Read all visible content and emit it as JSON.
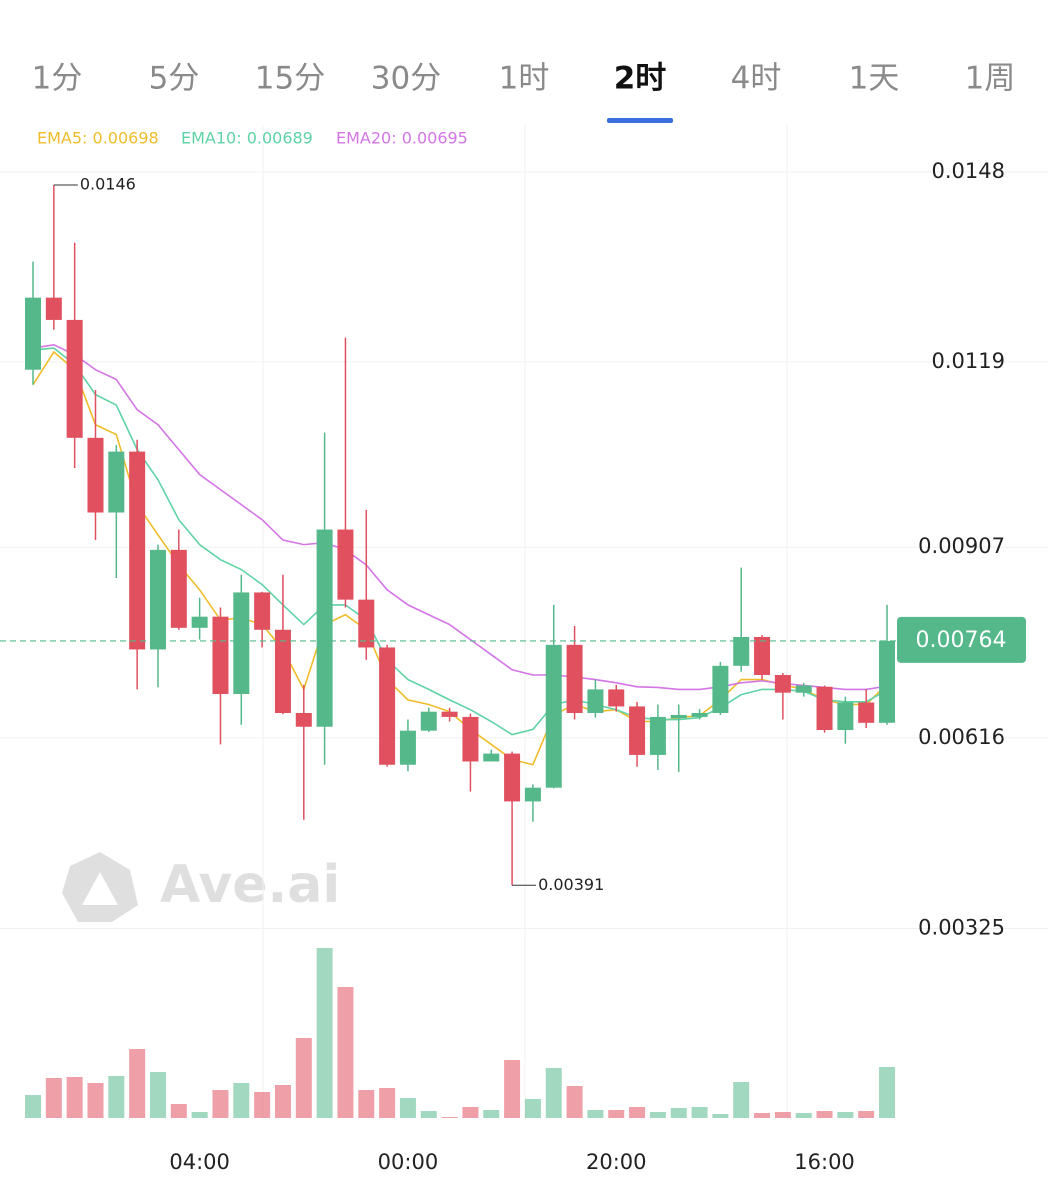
{
  "tabs": [
    "1分",
    "5分",
    "15分",
    "30分",
    "1时",
    "2时",
    "4时",
    "1天",
    "1周"
  ],
  "active_tab": 5,
  "watermark": "Ave.ai",
  "chart_data": {
    "type": "candlestick",
    "categories": [
      null,
      null,
      null,
      null,
      null,
      null,
      null,
      null,
      "04:00",
      null,
      null,
      null,
      null,
      null,
      null,
      null,
      null,
      null,
      "00:00",
      null,
      null,
      null,
      null,
      null,
      null,
      null,
      null,
      null,
      "20:00",
      null,
      null,
      null,
      null,
      null,
      null,
      null,
      null,
      null,
      "16:00",
      null,
      null,
      null
    ],
    "open": [
      0.01178,
      0.01288,
      0.01254,
      0.01074,
      0.0096,
      0.01053,
      0.00751,
      0.00903,
      0.00784,
      0.00801,
      0.00683,
      0.00838,
      0.00781,
      0.00654,
      0.00633,
      0.00934,
      0.00827,
      0.00754,
      0.00575,
      0.00627,
      0.00656,
      0.00648,
      0.0058,
      0.00592,
      0.00519,
      0.0054,
      0.00758,
      0.00654,
      0.0069,
      0.00664,
      0.0059,
      0.00646,
      0.00648,
      0.00654,
      0.00726,
      0.0077,
      0.00712,
      0.00685,
      0.00694,
      0.00628,
      0.0067,
      0.00639
    ],
    "high": [
      0.01343,
      0.0146,
      0.01372,
      0.01147,
      0.01063,
      0.01071,
      0.00911,
      0.00934,
      0.0083,
      0.00815,
      0.00865,
      0.00839,
      0.00865,
      0.00697,
      0.01082,
      0.01227,
      0.00964,
      0.00758,
      0.00644,
      0.00662,
      0.00662,
      0.00653,
      0.00598,
      0.00595,
      0.00545,
      0.00819,
      0.00787,
      0.00705,
      0.00697,
      0.00671,
      0.00667,
      0.00667,
      0.0066,
      0.00732,
      0.00876,
      0.00773,
      0.00715,
      0.007,
      0.00696,
      0.00679,
      0.0069,
      0.00819
    ],
    "low": [
      0.01155,
      0.01239,
      0.01028,
      0.00918,
      0.0086,
      0.0069,
      0.00693,
      0.00781,
      0.00766,
      0.00606,
      0.00636,
      0.00754,
      0.00652,
      0.00491,
      0.00575,
      0.00815,
      0.00735,
      0.00572,
      0.00565,
      0.00625,
      0.00641,
      0.00534,
      0.0058,
      0.00391,
      0.00488,
      0.00539,
      0.00644,
      0.00647,
      0.00656,
      0.00572,
      0.00567,
      0.00564,
      0.00644,
      0.00651,
      0.00717,
      0.00705,
      0.00644,
      0.00679,
      0.00624,
      0.00607,
      0.00631,
      0.00636
    ],
    "close": [
      0.01288,
      0.01254,
      0.01074,
      0.0096,
      0.01053,
      0.00751,
      0.00903,
      0.00784,
      0.00801,
      0.00683,
      0.00838,
      0.00781,
      0.00654,
      0.00633,
      0.00934,
      0.00827,
      0.00754,
      0.00575,
      0.00627,
      0.00656,
      0.00648,
      0.0058,
      0.00592,
      0.00519,
      0.0054,
      0.00758,
      0.00654,
      0.0069,
      0.00664,
      0.0059,
      0.00648,
      0.00651,
      0.00654,
      0.00726,
      0.0077,
      0.00712,
      0.00685,
      0.00696,
      0.00628,
      0.0067,
      0.00639,
      0.00764
    ],
    "volume": [
      23,
      40,
      41,
      35,
      42,
      69,
      46,
      14,
      6,
      28,
      35,
      26,
      33,
      80,
      170,
      131,
      28,
      30,
      20,
      7,
      1,
      11,
      8,
      58,
      19,
      50,
      32,
      8,
      8,
      11,
      6,
      10,
      11,
      4,
      36,
      5,
      6,
      5,
      7,
      6,
      7,
      51
    ],
    "series": [
      {
        "name": "EMA5: 0.00698",
        "color": "#f0bd2a",
        "values": [
          0.01155,
          0.01205,
          0.01178,
          0.01094,
          0.01079,
          0.00972,
          0.00926,
          0.0088,
          0.00842,
          0.00796,
          0.00799,
          0.00789,
          0.00751,
          0.0069,
          0.00789,
          0.00804,
          0.00781,
          0.00705,
          0.00674,
          0.00667,
          0.00656,
          0.00629,
          0.00606,
          0.00583,
          0.00575,
          0.00651,
          0.00667,
          0.00656,
          0.00659,
          0.00641,
          0.00641,
          0.00647,
          0.0065,
          0.00674,
          0.00705,
          0.00705,
          0.00697,
          0.0069,
          0.00674,
          0.00667,
          0.00667,
          0.00698
        ]
      },
      {
        "name": "EMA10: 0.00689",
        "color": "#5fd3a5",
        "values": [
          0.01208,
          0.01211,
          0.01186,
          0.0114,
          0.01124,
          0.01056,
          0.0101,
          0.00949,
          0.00911,
          0.00888,
          0.00873,
          0.0085,
          0.00819,
          0.00789,
          0.00819,
          0.00819,
          0.00796,
          0.00735,
          0.00705,
          0.0069,
          0.00674,
          0.00659,
          0.00641,
          0.00621,
          0.00629,
          0.00667,
          0.00674,
          0.00667,
          0.00659,
          0.00647,
          0.00644,
          0.00644,
          0.00647,
          0.00662,
          0.00682,
          0.0069,
          0.0069,
          0.00687,
          0.00674,
          0.00671,
          0.00671,
          0.00689
        ]
      },
      {
        "name": "EMA20: 0.00695",
        "color": "#d475e6",
        "values": [
          0.01211,
          0.01216,
          0.01201,
          0.01178,
          0.01163,
          0.01117,
          0.01094,
          0.01056,
          0.01018,
          0.00995,
          0.00972,
          0.00949,
          0.00918,
          0.00911,
          0.00914,
          0.00903,
          0.0088,
          0.00842,
          0.00819,
          0.00804,
          0.00789,
          0.00766,
          0.00743,
          0.0072,
          0.00712,
          0.00712,
          0.00709,
          0.00705,
          0.007,
          0.00694,
          0.00693,
          0.0069,
          0.0069,
          0.00694,
          0.007,
          0.00703,
          0.00699,
          0.00696,
          0.00693,
          0.0069,
          0.0069,
          0.00695
        ]
      }
    ],
    "up_color": "#55b88a",
    "down_color": "#e0505f",
    "ylim": [
      0.0028,
      0.0155
    ],
    "yticks": [
      0.00325,
      0.00616,
      0.00907,
      0.0119,
      0.0148
    ],
    "grid": true
  }
}
